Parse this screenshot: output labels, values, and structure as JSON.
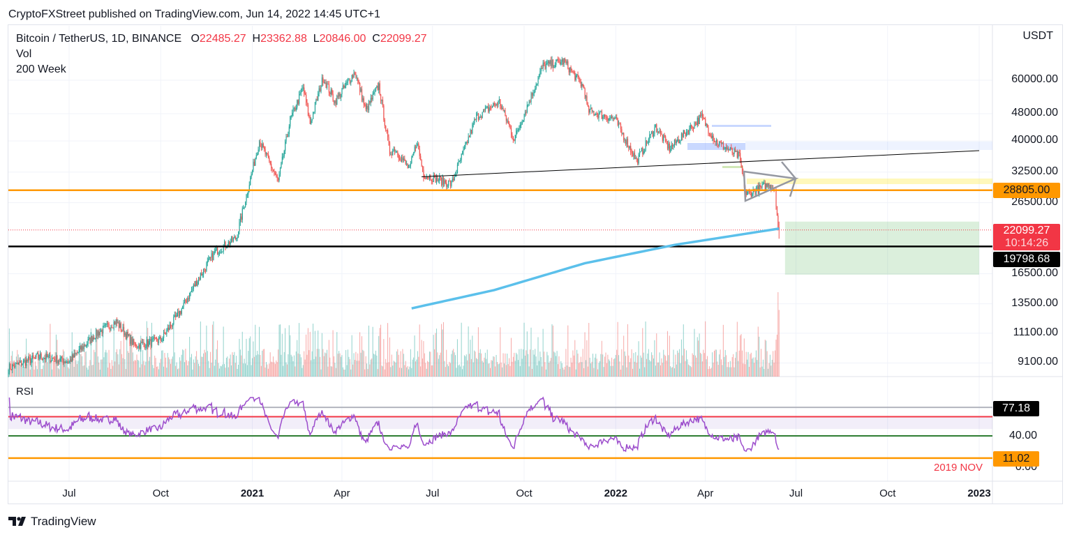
{
  "header": {
    "published": "CryptoFXStreet published on TradingView.com, Jun 14, 2022 14:45 UTC+1"
  },
  "legend": {
    "symbol": "Bitcoin / TetherUS, 1D, BINANCE",
    "o_label": "O",
    "o": "22485.27",
    "h_label": "H",
    "h": "23362.88",
    "l_label": "L",
    "l": "20846.00",
    "c_label": "C",
    "c": "22099.27",
    "vol": "Vol",
    "ma": "200 Week"
  },
  "colors": {
    "up": "#26a69a",
    "down": "#ef5350",
    "ma": "#5bc0eb",
    "rsi": "#9c4dcc",
    "orange": "#ff9800",
    "red_line": "#f23645",
    "green_line": "#2e7d32"
  },
  "chart_data": {
    "type": "candlestick",
    "scale": "log",
    "currency": "USDT",
    "y_ticks": [
      "60000.00",
      "48000.00",
      "40000.00",
      "32500.00",
      "26500.00",
      "16500.00",
      "13500.00",
      "11100.00",
      "9100.00"
    ],
    "x_ticks": [
      {
        "label": "Jul",
        "date": "2020-07-01",
        "bold": false
      },
      {
        "label": "Oct",
        "date": "2020-10-01",
        "bold": false
      },
      {
        "label": "2021",
        "date": "2021-01-01",
        "bold": true
      },
      {
        "label": "Apr",
        "date": "2021-04-01",
        "bold": false
      },
      {
        "label": "Jul",
        "date": "2021-07-01",
        "bold": false
      },
      {
        "label": "Oct",
        "date": "2021-10-01",
        "bold": false
      },
      {
        "label": "2022",
        "date": "2022-01-01",
        "bold": true
      },
      {
        "label": "Apr",
        "date": "2022-04-01",
        "bold": false
      },
      {
        "label": "Jul",
        "date": "2022-07-01",
        "bold": false
      },
      {
        "label": "Oct",
        "date": "2022-10-01",
        "bold": false
      },
      {
        "label": "2023",
        "date": "2023-01-01",
        "bold": true
      }
    ],
    "close_path": [
      [
        "2020-05-01",
        8800
      ],
      [
        "2020-06-01",
        9500
      ],
      [
        "2020-07-01",
        9200
      ],
      [
        "2020-07-27",
        11000
      ],
      [
        "2020-08-17",
        12000
      ],
      [
        "2020-09-05",
        10200
      ],
      [
        "2020-10-01",
        10600
      ],
      [
        "2020-10-21",
        12900
      ],
      [
        "2020-11-05",
        15500
      ],
      [
        "2020-11-24",
        19000
      ],
      [
        "2020-12-16",
        21000
      ],
      [
        "2021-01-08",
        40000
      ],
      [
        "2021-01-27",
        30500
      ],
      [
        "2021-02-08",
        46000
      ],
      [
        "2021-02-21",
        57000
      ],
      [
        "2021-02-28",
        45000
      ],
      [
        "2021-03-13",
        61000
      ],
      [
        "2021-03-25",
        52000
      ],
      [
        "2021-04-14",
        63500
      ],
      [
        "2021-04-25",
        49000
      ],
      [
        "2021-05-08",
        58000
      ],
      [
        "2021-05-19",
        37000
      ],
      [
        "2021-05-24",
        38000
      ],
      [
        "2021-06-08",
        33000
      ],
      [
        "2021-06-15",
        40000
      ],
      [
        "2021-06-22",
        32000
      ],
      [
        "2021-07-20",
        30000
      ],
      [
        "2021-08-14",
        47000
      ],
      [
        "2021-09-06",
        52000
      ],
      [
        "2021-09-21",
        40500
      ],
      [
        "2021-10-01",
        48000
      ],
      [
        "2021-10-20",
        66000
      ],
      [
        "2021-11-10",
        68000
      ],
      [
        "2021-11-30",
        57000
      ],
      [
        "2021-12-04",
        49000
      ],
      [
        "2021-12-31",
        46300
      ],
      [
        "2022-01-22",
        35000
      ],
      [
        "2022-02-10",
        44000
      ],
      [
        "2022-02-24",
        38000
      ],
      [
        "2022-03-28",
        47000
      ],
      [
        "2022-04-11",
        40000
      ],
      [
        "2022-05-05",
        36000
      ],
      [
        "2022-05-12",
        28000
      ],
      [
        "2022-06-05",
        30000
      ],
      [
        "2022-06-10",
        29000
      ],
      [
        "2022-06-13",
        22500
      ],
      [
        "2022-06-14",
        22099.27
      ]
    ],
    "ma_200_week": [
      [
        "2021-06-10",
        13100
      ],
      [
        "2021-09-01",
        14800
      ],
      [
        "2021-12-01",
        17700
      ],
      [
        "2022-03-01",
        20000
      ],
      [
        "2022-06-14",
        22300
      ]
    ],
    "last_price": {
      "value": "22099.27",
      "countdown": "10:14:26"
    },
    "levels": [
      {
        "value": 28805,
        "label": "28805.00",
        "color": "#ff9800"
      },
      {
        "value": 19798.68,
        "label": "19798.68",
        "color": "#000000"
      }
    ],
    "trendline": [
      [
        "2021-06-20",
        31500
      ],
      [
        "2023-01-01",
        37500
      ]
    ],
    "target_box": {
      "from": "2022-06-20",
      "to": "2023-01-01",
      "top": 23362.88,
      "bottom": 16400
    },
    "rsi": {
      "title": "RSI",
      "upper": 77.18,
      "upper_label": "77.18",
      "band_top": 65,
      "band_bottom": 49,
      "mid": 40,
      "mid_label": "40.00",
      "lower": 11.02,
      "lower_label": "11.02",
      "zero_label": "0.00",
      "note": "2019 NOV"
    }
  },
  "footer": {
    "logo": "TradingView"
  }
}
